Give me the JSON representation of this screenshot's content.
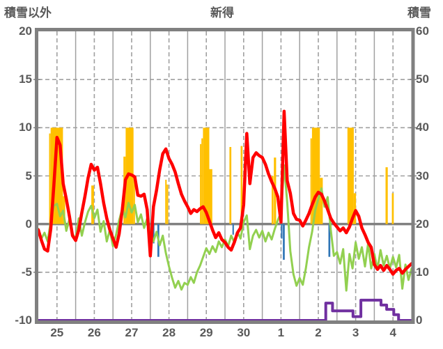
{
  "header": {
    "left_axis_title": "積雪以外",
    "station_title": "新得",
    "right_axis_title": "積雪"
  },
  "chart_data": {
    "type": "composite",
    "title": "新得",
    "grid": true,
    "x_axis": {
      "days": 10,
      "day_labels": [
        "25",
        "26",
        "27",
        "28",
        "29",
        "30",
        "1",
        "2",
        "3",
        "4"
      ],
      "note_solid_lines": "midnight",
      "note_dashed_lines": "noon"
    },
    "left_axis": {
      "title": "積雪以外",
      "min": -10,
      "max": 20,
      "ticks": [
        20,
        15,
        10,
        5,
        0,
        -5,
        -10
      ],
      "dashed_gridlines": [
        15,
        10,
        5,
        -5
      ],
      "zero_line": 0
    },
    "right_axis": {
      "title": "積雪",
      "min": 0,
      "max": 60,
      "ticks": [
        60,
        50,
        40,
        30,
        20,
        10,
        0
      ]
    },
    "series": {
      "temperature_red": {
        "color": "#FF0000",
        "axis": "left",
        "type": "line",
        "step_hours": 2,
        "values": [
          -0.6,
          -1.7,
          -2.6,
          -2.8,
          -0.5,
          4.0,
          9.0,
          8.2,
          4.2,
          2.6,
          0.8,
          -1.2,
          -1.7,
          -0.6,
          1.2,
          2.9,
          4.8,
          6.2,
          5.6,
          5.9,
          4.2,
          2.2,
          0.6,
          -0.6,
          -1.5,
          -2.4,
          -1.0,
          1.5,
          4.6,
          5.2,
          5.1,
          4.9,
          3.0,
          2.9,
          3.1,
          1.5,
          -3.3,
          1.8,
          3.5,
          5.6,
          7.3,
          7.8,
          6.8,
          6.2,
          5.4,
          4.2,
          3.1,
          2.4,
          1.8,
          1.1,
          1.5,
          1.3,
          1.6,
          1.8,
          1.2,
          0.3,
          -0.6,
          -1.4,
          -0.9,
          -1.6,
          -1.9,
          -2.4,
          -2.7,
          -1.9,
          -0.9,
          -0.4,
          2.0,
          9.4,
          4.2,
          6.9,
          7.4,
          7.1,
          6.9,
          6.2,
          5.2,
          4.4,
          3.7,
          2.8,
          0.2,
          11.7,
          4.5,
          3.2,
          1.1,
          0.5,
          0.4,
          -0.2,
          0.4,
          1.1,
          2.0,
          2.8,
          3.3,
          3.1,
          2.4,
          1.5,
          0.6,
          0.1,
          -0.3,
          -0.7,
          -0.4,
          -0.9,
          -0.3,
          0.6,
          1.4,
          0.8,
          -0.4,
          -1.1,
          -1.9,
          -2.4,
          -4.2,
          -4.7,
          -4.3,
          -4.8,
          -4.3,
          -4.7,
          -5.2,
          -4.8,
          -4.6,
          -5.1,
          -4.7,
          -4.4,
          -4.1
        ]
      },
      "green_line": {
        "color": "#92D050",
        "axis": "left",
        "type": "line",
        "step_hours": 2,
        "values": [
          -0.5,
          -1.5,
          -0.9,
          -1.8,
          0.3,
          1.9,
          2.1,
          0.8,
          1.4,
          -0.7,
          0.5,
          -1.0,
          -1.6,
          0.6,
          -1.2,
          0.2,
          1.3,
          1.9,
          0.6,
          1.5,
          -0.8,
          0.3,
          -1.8,
          -0.6,
          -2.3,
          -1.1,
          0.4,
          1.6,
          0.7,
          2.2,
          1.2,
          2.0,
          0.2,
          1.0,
          -0.4,
          0.6,
          -0.9,
          -1.8,
          -0.8,
          -2.2,
          -1.2,
          -3.0,
          -4.4,
          -5.6,
          -6.6,
          -5.9,
          -6.8,
          -6.1,
          -6.3,
          -5.5,
          -6.1,
          -5.0,
          -4.3,
          -3.4,
          -2.5,
          -3.1,
          -2.3,
          -2.9,
          -1.8,
          -2.4,
          -1.6,
          -2.3,
          -1.2,
          -1.9,
          -0.8,
          -1.5,
          0.2,
          0.9,
          -2.6,
          -1.2,
          -0.6,
          -1.4,
          -0.7,
          -1.8,
          -0.9,
          -1.6,
          -0.5,
          0.4,
          1.2,
          6.1,
          2.3,
          -2.8,
          -5.2,
          -6.4,
          -5.6,
          -6.3,
          -4.6,
          -2.4,
          -0.8,
          1.4,
          2.6,
          3.7,
          1.8,
          2.8,
          -0.6,
          -3.3,
          -2.9,
          -4.1,
          -2.6,
          -6.9,
          -3.1,
          -4.6,
          -1.9,
          -3.6,
          -2.4,
          -4.4,
          -2.0,
          -4.6,
          -3.1,
          -4.7,
          -2.7,
          -4.3,
          -3.3,
          -4.6,
          -3.4,
          -4.5,
          -3.2,
          -6.7,
          -4.2,
          -5.8,
          -4.6
        ]
      },
      "sunshine_bars_orange": {
        "color": "#FFC000",
        "axis": "left",
        "type": "bar",
        "bars": [
          {
            "t": 0.29,
            "w": 0.04,
            "v": 9.4
          },
          {
            "t": 0.33,
            "w": 0.33,
            "v": 10
          },
          {
            "t": 0.66,
            "w": 0.06,
            "v": 2.9
          },
          {
            "t": 1.42,
            "w": 0.07,
            "v": 4.0
          },
          {
            "t": 2.28,
            "w": 0.06,
            "v": 7.0
          },
          {
            "t": 2.34,
            "w": 0.21,
            "v": 10
          },
          {
            "t": 2.55,
            "w": 0.04,
            "v": 5.0
          },
          {
            "t": 3.4,
            "w": 0.04,
            "v": 4.6
          },
          {
            "t": 3.44,
            "w": 0.04,
            "v": 4.1
          },
          {
            "t": 4.33,
            "w": 0.04,
            "v": 8.3
          },
          {
            "t": 4.37,
            "w": 0.04,
            "v": 8.9
          },
          {
            "t": 4.41,
            "w": 0.17,
            "v": 10
          },
          {
            "t": 4.58,
            "w": 0.08,
            "v": 5.7
          },
          {
            "t": 5.12,
            "w": 0.05,
            "v": 8.0
          },
          {
            "t": 5.42,
            "w": 0.05,
            "v": 8.1
          },
          {
            "t": 6.25,
            "w": 0.05,
            "v": 5.0
          },
          {
            "t": 6.31,
            "w": 0.06,
            "v": 6.9
          },
          {
            "t": 7.29,
            "w": 0.04,
            "v": 8.9
          },
          {
            "t": 7.33,
            "w": 0.21,
            "v": 10
          },
          {
            "t": 7.54,
            "w": 0.08,
            "v": 4.8
          },
          {
            "t": 8.28,
            "w": 0.17,
            "v": 10
          },
          {
            "t": 8.45,
            "w": 0.06,
            "v": 3.2
          },
          {
            "t": 9.3,
            "w": 0.06,
            "v": 5.9
          },
          {
            "t": 9.47,
            "w": 0.05,
            "v": 3.2
          }
        ]
      },
      "precip_bars_blue": {
        "color": "#2E75B6",
        "axis": "left",
        "type": "bar",
        "bars": [
          {
            "t": 3.07,
            "w": 0.04,
            "v": -2.0
          },
          {
            "t": 3.19,
            "w": 0.05,
            "v": -3.4
          },
          {
            "t": 5.2,
            "w": 0.04,
            "v": -1.1
          },
          {
            "t": 6.5,
            "w": 0.04,
            "v": -1.5
          },
          {
            "t": 6.55,
            "w": 0.05,
            "v": -3.7
          },
          {
            "t": 7.77,
            "w": 0.05,
            "v": -3.4
          }
        ]
      },
      "snow_depth_purple": {
        "color": "#7030A0",
        "axis": "right",
        "type": "step-line",
        "steps": [
          [
            0,
            0
          ],
          [
            7.7,
            0
          ],
          [
            7.7,
            3.6
          ],
          [
            7.88,
            3.6
          ],
          [
            7.88,
            2.0
          ],
          [
            8.43,
            2.0
          ],
          [
            8.43,
            0.8
          ],
          [
            8.64,
            0.8
          ],
          [
            8.64,
            4.2
          ],
          [
            9.18,
            4.2
          ],
          [
            9.18,
            3.2
          ],
          [
            9.33,
            3.2
          ],
          [
            9.33,
            2.3
          ],
          [
            9.52,
            2.3
          ],
          [
            9.52,
            1.2
          ],
          [
            9.65,
            1.2
          ],
          [
            9.65,
            0
          ],
          [
            10,
            0
          ]
        ]
      }
    },
    "style": {
      "frame_color": "#808080",
      "grid_color": "#A0A0A0",
      "zero_line_color": "#808080",
      "label_color": "#595959"
    }
  }
}
